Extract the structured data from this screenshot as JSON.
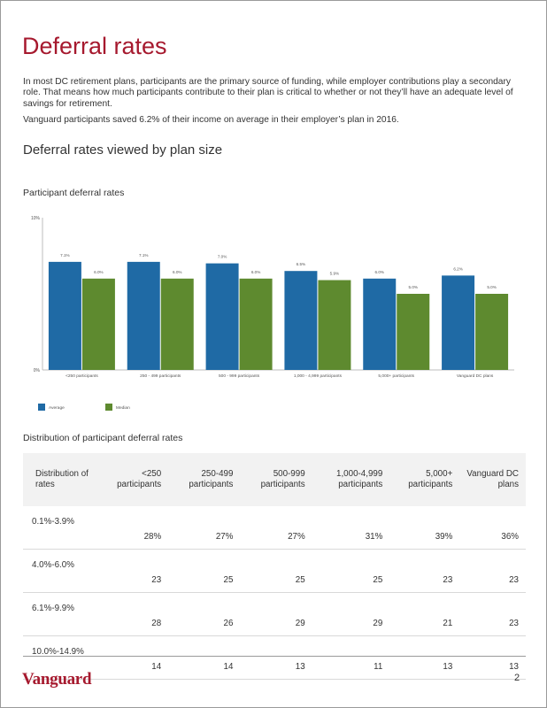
{
  "page": {
    "title": "Deferral rates",
    "intro": "In most DC retirement plans, participants are the primary source of funding, while employer contributions play a secondary role. That means how much participants contribute to their plan is critical to whether or not they’ll have an adequate level of savings for retirement.",
    "stat": "Vanguard participants saved 6.2% of their income on average in their employer’s plan in 2016.",
    "section_title": "Deferral rates viewed by plan size",
    "chart_heading": "Participant deferral rates",
    "table_heading": "Distribution of participant deferral rates",
    "page_number": "2",
    "logo_text": "Vanguard"
  },
  "colors": {
    "average": "#1f6aa5",
    "median": "#5e8a2f",
    "brand": "#a6192e"
  },
  "chart_data": {
    "type": "bar",
    "title": "Participant deferral rates",
    "categories": [
      "<250 participants",
      "250 - 499 participants",
      "500 - 999 participants",
      "1,000 - 4,999 participants",
      "5,000+ participants",
      "Vanguard DC plans"
    ],
    "series": [
      {
        "name": "Average",
        "values": [
          7.1,
          7.1,
          7.0,
          6.5,
          6.0,
          6.2
        ],
        "labels": [
          "7.1%",
          "7.1%",
          "7.0%",
          "6.5%",
          "6.0%",
          "6.2%"
        ]
      },
      {
        "name": "Median",
        "values": [
          6.0,
          6.0,
          6.0,
          5.9,
          5.0,
          5.0
        ],
        "labels": [
          "6.0%",
          "6.0%",
          "6.0%",
          "5.9%",
          "5.0%",
          "5.0%"
        ]
      }
    ],
    "ylim": [
      0,
      10
    ],
    "ytick_labels": [
      "0%",
      "10%"
    ],
    "xlabel": "",
    "ylabel": "",
    "legend_position": "bottom-left"
  },
  "table": {
    "headers": [
      "Distribution of rates",
      "<250 participants",
      "250-499 participants",
      "500-999 participants",
      "1,000-4,999 participants",
      "5,000+ participants",
      "Vanguard DC plans"
    ],
    "rows": [
      [
        "0.1%-3.9%",
        "28%",
        "27%",
        "27%",
        "31%",
        "39%",
        "36%"
      ],
      [
        "4.0%-6.0%",
        "23",
        "25",
        "25",
        "25",
        "23",
        "23"
      ],
      [
        "6.1%-9.9%",
        "28",
        "26",
        "29",
        "29",
        "21",
        "23"
      ],
      [
        "10.0%-14.9%",
        "14",
        "14",
        "13",
        "11",
        "13",
        "13"
      ]
    ]
  }
}
